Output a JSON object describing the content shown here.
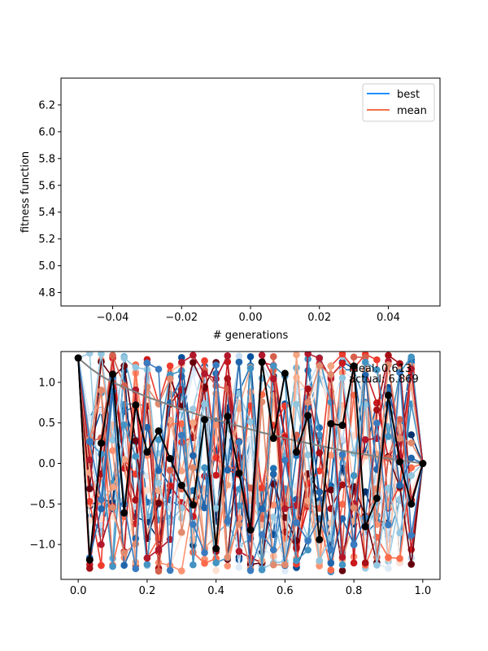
{
  "chart_data": [
    {
      "type": "line",
      "title": "",
      "xlabel": "# generations",
      "ylabel": "fitness function",
      "xlim": [
        -0.055,
        0.055
      ],
      "ylim": [
        4.7,
        6.4
      ],
      "x_ticks": [
        "−0.04",
        "−0.02",
        "0.00",
        "0.02",
        "0.04"
      ],
      "x_tick_values": [
        -0.04,
        -0.02,
        0.0,
        0.02,
        0.04
      ],
      "y_ticks": [
        "4.8",
        "5.0",
        "5.2",
        "5.4",
        "5.6",
        "5.8",
        "6.0",
        "6.2"
      ],
      "y_tick_values": [
        4.8,
        5.0,
        5.2,
        5.4,
        5.6,
        5.8,
        6.0,
        6.2
      ],
      "legend_position": "top-right",
      "series": [
        {
          "name": "best",
          "color": "#1e90ff",
          "x": [],
          "y": []
        },
        {
          "name": "mean",
          "color": "#f0704a",
          "x": [],
          "y": []
        }
      ]
    },
    {
      "type": "line",
      "title": "",
      "xlabel": "",
      "ylabel": "",
      "xlim": [
        -0.05,
        1.05
      ],
      "ylim": [
        -1.43,
        1.38
      ],
      "x_ticks": [
        "0.0",
        "0.2",
        "0.4",
        "0.6",
        "0.8",
        "1.0"
      ],
      "x_tick_values": [
        0.0,
        0.2,
        0.4,
        0.6,
        0.8,
        1.0
      ],
      "y_ticks": [
        "−1.0",
        "−0.5",
        "0.0",
        "0.5",
        "1.0"
      ],
      "y_tick_values": [
        -1.0,
        -0.5,
        0.0,
        0.5,
        1.0
      ],
      "annotations": [
        "ideal: 0.613",
        "actual: 6.869"
      ],
      "ideal_curve": {
        "color": "#808080",
        "x": [
          0.0,
          0.0333,
          0.0667,
          0.1,
          0.1333,
          0.1667,
          0.2,
          0.2333,
          0.2667,
          0.3,
          0.3333,
          0.3667,
          0.4,
          0.4333,
          0.4667,
          0.5,
          0.5333,
          0.5667,
          0.6,
          0.6333,
          0.6667,
          0.7,
          0.7333,
          0.7667,
          0.8,
          0.8333,
          0.8667,
          0.9,
          0.9333,
          0.9667,
          1.0
        ],
        "y": [
          1.3,
          1.18,
          1.08,
          1.0,
          0.94,
          0.88,
          0.82,
          0.77,
          0.72,
          0.67,
          0.62,
          0.58,
          0.54,
          0.5,
          0.46,
          0.42,
          0.38,
          0.35,
          0.31,
          0.28,
          0.25,
          0.22,
          0.19,
          0.16,
          0.13,
          0.11,
          0.08,
          0.06,
          0.04,
          0.02,
          0.0
        ]
      },
      "highlight_path": {
        "color": "#000000",
        "x": [
          0.0,
          0.0333,
          0.0667,
          0.1,
          0.1333,
          0.1667,
          0.2,
          0.2333,
          0.2667,
          0.3,
          0.3333,
          0.3667,
          0.4,
          0.4333,
          0.4667,
          0.5,
          0.5333,
          0.5667,
          0.6,
          0.6333,
          0.6667,
          0.7,
          0.7333,
          0.7667,
          0.8,
          0.8333,
          0.8667,
          0.9,
          0.9333,
          0.9667,
          1.0
        ],
        "y": [
          1.3,
          -1.19,
          0.25,
          1.1,
          -0.61,
          0.72,
          0.14,
          0.4,
          0.06,
          -0.27,
          -0.51,
          0.54,
          -1.05,
          0.58,
          -0.12,
          -0.82,
          1.25,
          0.31,
          1.11,
          0.14,
          0.59,
          -0.94,
          0.49,
          0.47,
          1.2,
          -0.78,
          -0.43,
          0.84,
          0.02,
          -0.5,
          0.0
        ]
      },
      "population_paths": {
        "count": 24,
        "color_scale": "red-blue diverging",
        "colors": [
          "#08306b",
          "#08519c",
          "#2171b5",
          "#4292c6",
          "#6baed6",
          "#9ecae1",
          "#c6dbef",
          "#deebf7",
          "#fee0d2",
          "#fcbba1",
          "#fc9272",
          "#fb6a4a",
          "#ef3b2c",
          "#cb181d",
          "#a50f15",
          "#67000d",
          "#d6604d",
          "#f4a582",
          "#92c5de",
          "#4393c3",
          "#2166ac",
          "#b2182b",
          "#e08a6e",
          "#3a7bbf"
        ]
      }
    }
  ]
}
